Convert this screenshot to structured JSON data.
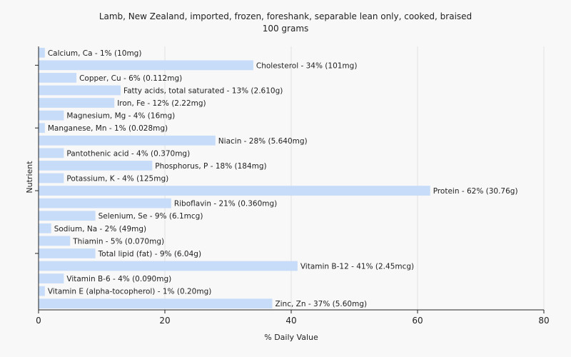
{
  "chart_data": {
    "type": "bar",
    "orientation": "horizontal",
    "title": "Lamb, New Zealand, imported, frozen, foreshank, separable lean only, cooked, braised",
    "subtitle": "100 grams",
    "xlabel": "% Daily Value",
    "ylabel": "Nutrient",
    "xlim": [
      0,
      80
    ],
    "xticks": [
      0,
      20,
      40,
      60,
      80
    ],
    "grid": true,
    "bar_color": "#c6dcf8",
    "categories": [
      "Calcium, Ca",
      "Cholesterol",
      "Copper, Cu",
      "Fatty acids, total saturated",
      "Iron, Fe",
      "Magnesium, Mg",
      "Manganese, Mn",
      "Niacin",
      "Pantothenic acid",
      "Phosphorus, P",
      "Potassium, K",
      "Protein",
      "Riboflavin",
      "Selenium, Se",
      "Sodium, Na",
      "Thiamin",
      "Total lipid (fat)",
      "Vitamin B-12",
      "Vitamin B-6",
      "Vitamin E (alpha-tocopherol)",
      "Zinc, Zn"
    ],
    "values": [
      1,
      34,
      6,
      13,
      12,
      4,
      1,
      28,
      4,
      18,
      4,
      62,
      21,
      9,
      2,
      5,
      9,
      41,
      4,
      1,
      37
    ],
    "labels": [
      "Calcium, Ca - 1% (10mg)",
      "Cholesterol - 34% (101mg)",
      "Copper, Cu - 6% (0.112mg)",
      "Fatty acids, total saturated - 13% (2.610g)",
      "Iron, Fe - 12% (2.22mg)",
      "Magnesium, Mg - 4% (16mg)",
      "Manganese, Mn - 1% (0.028mg)",
      "Niacin - 28% (5.640mg)",
      "Pantothenic acid - 4% (0.370mg)",
      "Phosphorus, P - 18% (184mg)",
      "Potassium, K - 4% (125mg)",
      "Protein - 62% (30.76g)",
      "Riboflavin - 21% (0.360mg)",
      "Selenium, Se - 9% (6.1mcg)",
      "Sodium, Na - 2% (49mg)",
      "Thiamin - 5% (0.070mg)",
      "Total lipid (fat) - 9% (6.04g)",
      "Vitamin B-12 - 41% (2.45mcg)",
      "Vitamin B-6 - 4% (0.090mg)",
      "Vitamin E (alpha-tocopherol) - 1% (0.20mg)",
      "Zinc, Zn - 37% (5.60mg)"
    ]
  }
}
